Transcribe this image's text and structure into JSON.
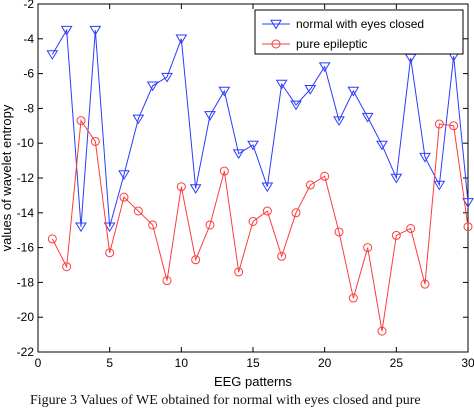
{
  "chart_data": {
    "type": "line",
    "title": "",
    "xlabel": "EEG patterns",
    "ylabel": "values of wavelet entropy",
    "xlim": [
      0,
      30
    ],
    "ylim": [
      -22,
      -2
    ],
    "xticks": [
      "0",
      "5",
      "10",
      "15",
      "20",
      "25",
      "30"
    ],
    "yticks": [
      "-2",
      "-4",
      "-6",
      "-8",
      "-10",
      "-12",
      "-14",
      "-16",
      "-18",
      "-20",
      "-22"
    ],
    "legend_position": "top-right",
    "grid": false,
    "x": [
      1,
      2,
      3,
      4,
      5,
      6,
      7,
      8,
      9,
      10,
      11,
      12,
      13,
      14,
      15,
      16,
      17,
      18,
      19,
      20,
      21,
      22,
      23,
      24,
      25,
      26,
      27,
      28,
      29,
      30
    ],
    "series": [
      {
        "name": "normal with eyes closed",
        "color": "#2b3bff",
        "marker": "triangle-down",
        "values": [
          -4.9,
          -3.5,
          -14.8,
          -3.5,
          -14.8,
          -11.8,
          -8.6,
          -6.7,
          -6.2,
          -4.0,
          -12.6,
          -8.4,
          -7.0,
          -10.6,
          -10.1,
          -12.5,
          -6.6,
          -7.8,
          -6.9,
          -5.6,
          -8.7,
          -7.0,
          -8.5,
          -10.1,
          -12.0,
          -5.1,
          -10.8,
          -12.4,
          -5.0,
          -13.4
        ]
      },
      {
        "name": "pure epileptic",
        "color": "#ff3b3b",
        "marker": "circle",
        "values": [
          -15.5,
          -17.1,
          -8.7,
          -9.9,
          -16.3,
          -13.1,
          -13.9,
          -14.7,
          -17.9,
          -12.5,
          -16.7,
          -14.7,
          -11.6,
          -17.4,
          -14.5,
          -13.9,
          -16.5,
          -14.0,
          -12.4,
          -11.9,
          -15.1,
          -18.9,
          -16.0,
          -20.8,
          -15.3,
          -14.9,
          -18.1,
          -8.9,
          -9.0,
          -14.8
        ]
      }
    ]
  },
  "caption": "Figure 3    Values of WE obtained for normal with eyes closed and pure"
}
